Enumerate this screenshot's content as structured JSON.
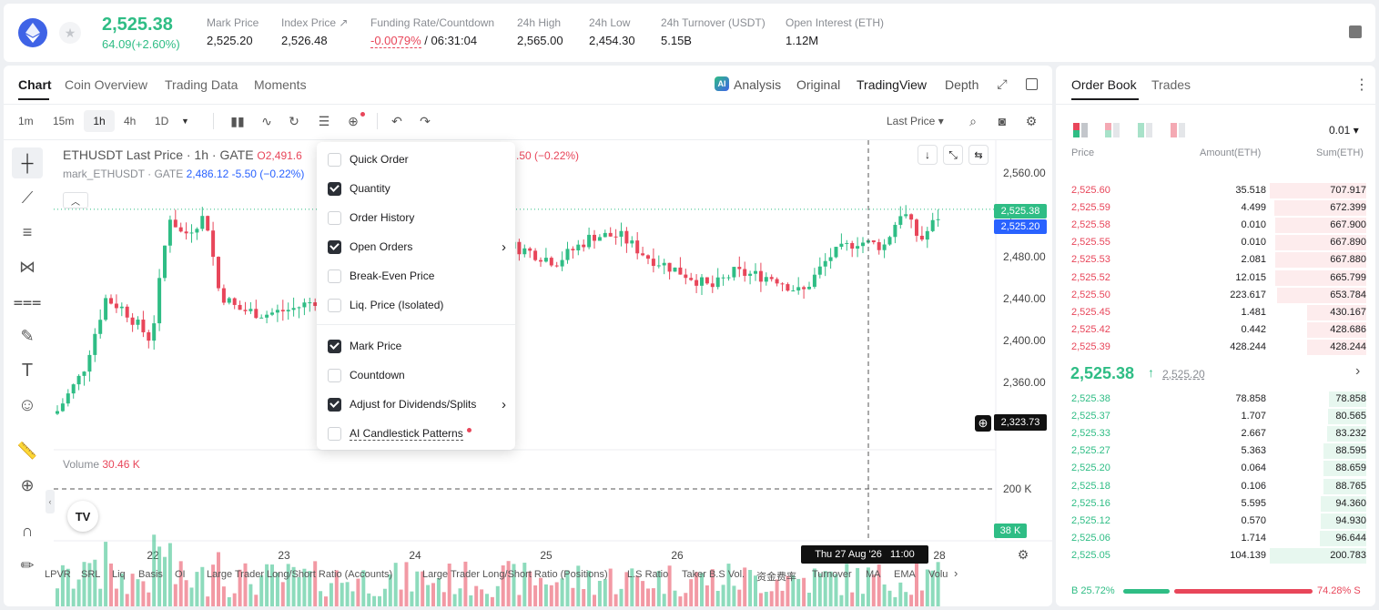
{
  "ticker": {
    "price": "2,525.38",
    "change": "64.09(+2.60%)",
    "stats": [
      {
        "label": "Mark Price",
        "value": "2,525.20"
      },
      {
        "label": "Index Price ↗",
        "value": "2,526.48"
      },
      {
        "label": "Funding Rate/Countdown",
        "value_a": "-0.0079%",
        "value_b": " / 06:31:04"
      },
      {
        "label": "24h High",
        "value": "2,565.00"
      },
      {
        "label": "24h Low",
        "value": "2,454.30"
      },
      {
        "label": "24h Turnover (USDT)",
        "value": "5.15B"
      },
      {
        "label": "Open Interest (ETH)",
        "value": "1.12M"
      }
    ]
  },
  "chart_tabs": [
    "Chart",
    "Coin Overview",
    "Trading Data",
    "Moments"
  ],
  "view_modes": [
    "Analysis",
    "Original",
    "TradingView",
    "Depth"
  ],
  "intervals": [
    "1m",
    "15m",
    "1h",
    "4h",
    "1D"
  ],
  "price_source": "Last Price ▾",
  "legend": {
    "title": "ETHUSDT Last Price · 1h · GATE",
    "ohlc": "O2,491.6",
    "change_tail": ".50 (−0.22%)",
    "mark_label": "mark_ETHUSDT · GATE",
    "mark_values": "2,486.12 -5.50 (−0.22%)"
  },
  "price_axis": [
    "2,560.00",
    "2,520.00",
    "2,480.00",
    "2,440.00",
    "2,400.00",
    "2,360.00"
  ],
  "price_tags": {
    "last": "2,525.38",
    "mark": "2,525.20",
    "cursor": "2,323.73",
    "vol": "38 K"
  },
  "volume": {
    "label": "Volume",
    "value": "30.46 K",
    "axis": "200 K"
  },
  "x_labels": [
    "22",
    "23",
    "24",
    "25",
    "26",
    "28"
  ],
  "crosshair_time": "Thu 27 Aug '26   11:00",
  "menu": {
    "items": [
      {
        "label": "Quick Order",
        "checked": false
      },
      {
        "label": "Quantity",
        "checked": true
      },
      {
        "label": "Order History",
        "checked": false
      },
      {
        "label": "Open Orders",
        "checked": true,
        "arrow": true
      },
      {
        "label": "Break-Even Price",
        "checked": false
      },
      {
        "label": "Liq. Price (Isolated)",
        "checked": false
      },
      {
        "label": "Mark Price",
        "checked": true
      },
      {
        "label": "Countdown",
        "checked": false
      },
      {
        "label": "Adjust for Dividends/Splits",
        "checked": true,
        "arrow": true
      },
      {
        "label": "AI Candlestick Patterns",
        "checked": false
      }
    ]
  },
  "indicators": [
    "LPVR",
    "SRL",
    "Liq",
    "Basis",
    "OI",
    "Large Trader Long/Short Ratio (Accounts)",
    "Large Trader Long/Short Ratio (Positions)",
    "L.S Ratio",
    "Taker B.S Vol.",
    "资金费率",
    "Turnover",
    "MA",
    "EMA",
    "Volu"
  ],
  "orderbook": {
    "tabs": [
      "Order Book",
      "Trades"
    ],
    "precision": "0.01 ▾",
    "headers": [
      "Price",
      "Amount(ETH)",
      "Sum(ETH)"
    ],
    "asks": [
      {
        "p": "2,525.60",
        "a": "35.518",
        "s": "707.917",
        "d": 1.0
      },
      {
        "p": "2,525.59",
        "a": "4.499",
        "s": "672.399",
        "d": 0.95
      },
      {
        "p": "2,525.58",
        "a": "0.010",
        "s": "667.900",
        "d": 0.94
      },
      {
        "p": "2,525.55",
        "a": "0.010",
        "s": "667.890",
        "d": 0.94
      },
      {
        "p": "2,525.53",
        "a": "2.081",
        "s": "667.880",
        "d": 0.94
      },
      {
        "p": "2,525.52",
        "a": "12.015",
        "s": "665.799",
        "d": 0.94
      },
      {
        "p": "2,525.50",
        "a": "223.617",
        "s": "653.784",
        "d": 0.92
      },
      {
        "p": "2,525.45",
        "a": "1.481",
        "s": "430.167",
        "d": 0.61
      },
      {
        "p": "2,525.42",
        "a": "0.442",
        "s": "428.686",
        "d": 0.61
      },
      {
        "p": "2,525.39",
        "a": "428.244",
        "s": "428.244",
        "d": 0.61
      }
    ],
    "mid": {
      "price": "2,525.38",
      "mark": "2,525.20"
    },
    "bids": [
      {
        "p": "2,525.38",
        "a": "78.858",
        "s": "78.858",
        "d": 0.39
      },
      {
        "p": "2,525.37",
        "a": "1.707",
        "s": "80.565",
        "d": 0.4
      },
      {
        "p": "2,525.33",
        "a": "2.667",
        "s": "83.232",
        "d": 0.41
      },
      {
        "p": "2,525.27",
        "a": "5.363",
        "s": "88.595",
        "d": 0.44
      },
      {
        "p": "2,525.20",
        "a": "0.064",
        "s": "88.659",
        "d": 0.44
      },
      {
        "p": "2,525.18",
        "a": "0.106",
        "s": "88.765",
        "d": 0.44
      },
      {
        "p": "2,525.16",
        "a": "5.595",
        "s": "94.360",
        "d": 0.47
      },
      {
        "p": "2,525.12",
        "a": "0.570",
        "s": "94.930",
        "d": 0.47
      },
      {
        "p": "2,525.06",
        "a": "1.714",
        "s": "96.644",
        "d": 0.48
      },
      {
        "p": "2,525.05",
        "a": "104.139",
        "s": "200.783",
        "d": 1.0
      }
    ],
    "ratio": {
      "buy": "B 25.72%",
      "sell": "74.28% S",
      "buy_frac": 0.2572
    }
  },
  "colors": {
    "up": "#2fbd85",
    "down": "#e8465a"
  }
}
